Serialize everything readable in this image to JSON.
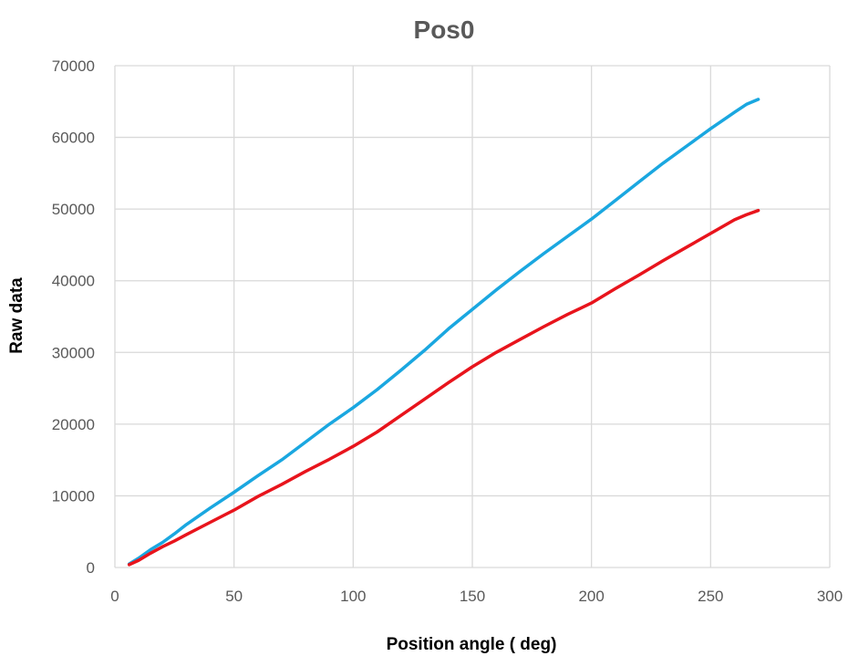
{
  "chart_data": {
    "type": "line",
    "title": "Pos0",
    "xlabel": "Position angle ( deg)",
    "ylabel": "Raw data",
    "xlim": [
      0,
      300
    ],
    "ylim": [
      0,
      70000
    ],
    "x_ticks": [
      0,
      50,
      100,
      150,
      200,
      250,
      300
    ],
    "y_ticks": [
      0,
      10000,
      20000,
      30000,
      40000,
      50000,
      60000,
      70000
    ],
    "grid": true,
    "legend": "none",
    "series": [
      {
        "color": "#1aa7e0",
        "x": [
          6,
          10,
          15,
          20,
          25,
          30,
          40,
          50,
          60,
          70,
          80,
          90,
          100,
          110,
          120,
          130,
          140,
          150,
          160,
          170,
          180,
          190,
          200,
          210,
          220,
          230,
          240,
          250,
          260,
          265,
          270
        ],
        "y": [
          500,
          1300,
          2500,
          3500,
          4700,
          6000,
          8300,
          10500,
          12800,
          15000,
          17500,
          20000,
          22300,
          24800,
          27500,
          30300,
          33300,
          36000,
          38700,
          41300,
          43800,
          46200,
          48600,
          51200,
          53800,
          56400,
          58800,
          61200,
          63500,
          64600,
          65300
        ]
      },
      {
        "color": "#e8141c",
        "x": [
          6,
          10,
          15,
          20,
          25,
          30,
          40,
          50,
          60,
          70,
          80,
          90,
          100,
          110,
          120,
          130,
          140,
          150,
          160,
          170,
          180,
          190,
          200,
          210,
          220,
          230,
          240,
          250,
          260,
          265,
          270
        ],
        "y": [
          400,
          1000,
          2000,
          2900,
          3700,
          4600,
          6300,
          8000,
          9900,
          11600,
          13400,
          15100,
          16900,
          18900,
          21200,
          23500,
          25800,
          28000,
          30000,
          31800,
          33600,
          35300,
          36900,
          38900,
          40800,
          42800,
          44700,
          46600,
          48500,
          49200,
          49800
        ]
      }
    ]
  }
}
